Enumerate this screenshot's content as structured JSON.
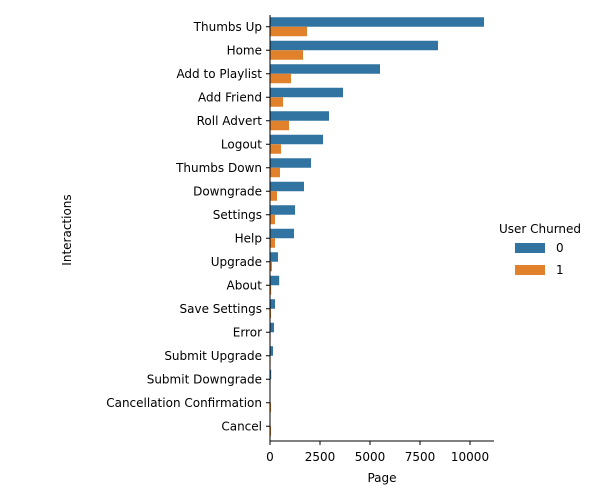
{
  "chart_data": {
    "type": "bar",
    "orientation": "horizontal",
    "xlabel": "Page",
    "ylabel": "Interactions",
    "xlim": [
      0,
      11200
    ],
    "xticks": [
      0,
      2500,
      5000,
      7500,
      10000
    ],
    "legend_title": "User Churned",
    "legend_position": "right",
    "categories": [
      "Thumbs Up",
      "Home",
      "Add to Playlist",
      "Add Friend",
      "Roll Advert",
      "Logout",
      "Thumbs Down",
      "Downgrade",
      "Settings",
      "Help",
      "Upgrade",
      "About",
      "Save Settings",
      "Error",
      "Submit Upgrade",
      "Submit Downgrade",
      "Cancellation Confirmation",
      "Cancel"
    ],
    "series": [
      {
        "name": "0",
        "color": "#3274a1",
        "values": [
          10700,
          8400,
          5500,
          3650,
          2950,
          2650,
          2050,
          1700,
          1250,
          1200,
          400,
          460,
          250,
          200,
          150,
          60,
          0,
          0
        ]
      },
      {
        "name": "1",
        "color": "#e1812c",
        "values": [
          1850,
          1650,
          1050,
          650,
          950,
          550,
          500,
          350,
          250,
          250,
          100,
          60,
          50,
          30,
          30,
          10,
          50,
          50
        ]
      }
    ]
  }
}
